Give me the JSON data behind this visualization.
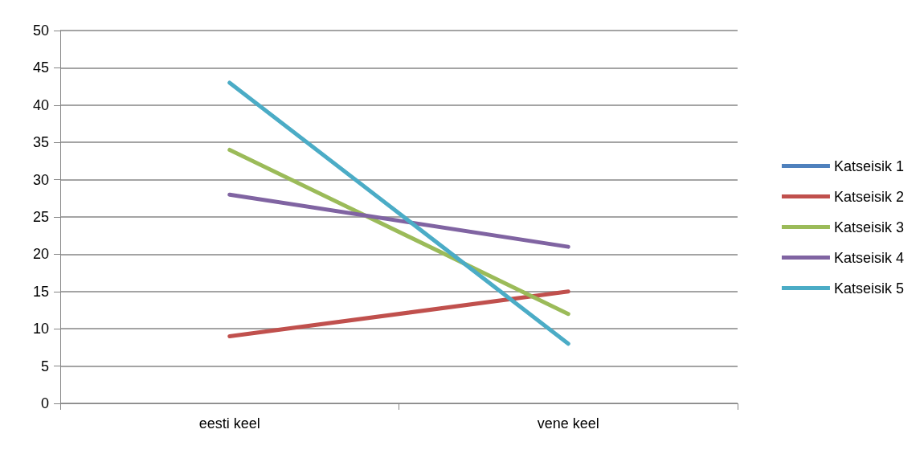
{
  "chart_data": {
    "type": "line",
    "categories": [
      "eesti keel",
      "vene keel"
    ],
    "series": [
      {
        "name": "Katseisik 1",
        "color": "#4f81bd",
        "values": [
          null,
          null
        ]
      },
      {
        "name": "Katseisik 2",
        "color": "#c0504d",
        "values": [
          9,
          15
        ]
      },
      {
        "name": "Katseisik 3",
        "color": "#9bbb59",
        "values": [
          34,
          12
        ]
      },
      {
        "name": "Katseisik 4",
        "color": "#8064a2",
        "values": [
          28,
          21
        ]
      },
      {
        "name": "Katseisik 5",
        "color": "#4bacc6",
        "values": [
          43,
          8
        ]
      }
    ],
    "ylim": [
      0,
      50
    ],
    "yticks": [
      0,
      5,
      10,
      15,
      20,
      25,
      30,
      35,
      40,
      45,
      50
    ],
    "grid": "y",
    "legend": "right",
    "marker": "none",
    "line_style": "solid"
  }
}
